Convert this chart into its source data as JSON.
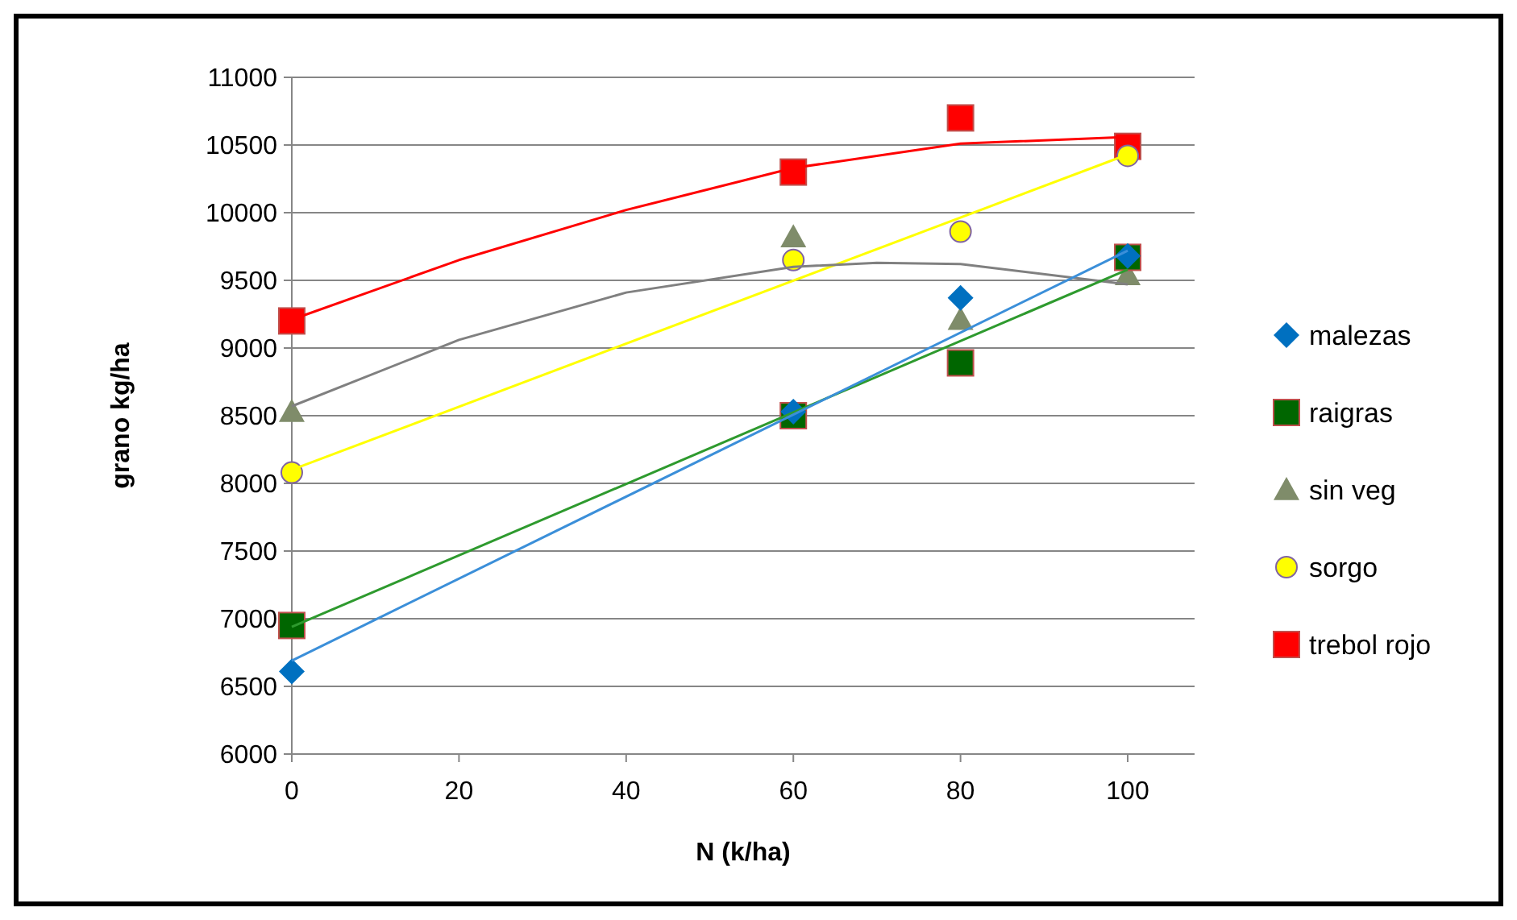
{
  "chart_data": {
    "type": "scatter",
    "xlabel": "N (k/ha)",
    "ylabel": "grano kg/ha",
    "xlim": [
      0,
      108
    ],
    "xticks": [
      0,
      20,
      40,
      60,
      80,
      100
    ],
    "ylim": [
      6000,
      11000
    ],
    "yticks": [
      6000,
      6500,
      7000,
      7500,
      8000,
      8500,
      9000,
      9500,
      10000,
      10500,
      11000
    ],
    "grid": "y",
    "legend": "right",
    "series": [
      {
        "type": "line",
        "color": "#3b8fd9",
        "marker": "none",
        "x": [
          0,
          100
        ],
        "values": [
          6690,
          9720
        ]
      },
      {
        "type": "line",
        "color": "#2e9a2e",
        "marker": "none",
        "x": [
          0,
          100
        ],
        "values": [
          6940,
          9580
        ]
      },
      {
        "type": "line",
        "color": "#808080",
        "marker": "none",
        "x": [
          0,
          20,
          40,
          60,
          70,
          80,
          100
        ],
        "values": [
          8570,
          9060,
          9410,
          9600,
          9630,
          9620,
          9470
        ]
      },
      {
        "type": "line",
        "color": "#ffff00",
        "marker": "none",
        "x": [
          0,
          100
        ],
        "values": [
          8100,
          10430
        ]
      },
      {
        "type": "line",
        "color": "#ff0000",
        "marker": "none",
        "x": [
          0,
          20,
          40,
          60,
          80,
          100
        ],
        "values": [
          9210,
          9650,
          10020,
          10330,
          10510,
          10560
        ]
      },
      {
        "name": "malezas",
        "color": "#0070c0",
        "marker": "diamond",
        "x": [
          0,
          60,
          80,
          100
        ],
        "values": [
          6610,
          8530,
          9370,
          9680
        ]
      },
      {
        "name": "raigras",
        "color": "#006600",
        "marker": "square",
        "x": [
          0,
          60,
          80,
          100
        ],
        "values": [
          6950,
          8500,
          8890,
          9670
        ]
      },
      {
        "name": "sin veg",
        "color": "#7f8c6a",
        "marker": "triangle",
        "x": [
          0,
          60,
          80,
          100
        ],
        "values": [
          8530,
          9820,
          9210,
          9540
        ]
      },
      {
        "name": "sorgo",
        "color": "#ffff00",
        "marker": "circle",
        "x": [
          0,
          60,
          80,
          100
        ],
        "values": [
          8080,
          9650,
          9860,
          10420
        ]
      },
      {
        "name": "trebol rojo",
        "color": "#ff0000",
        "marker": "square",
        "x": [
          0,
          60,
          80,
          100
        ],
        "values": [
          9200,
          10300,
          10700,
          10490
        ]
      }
    ]
  }
}
